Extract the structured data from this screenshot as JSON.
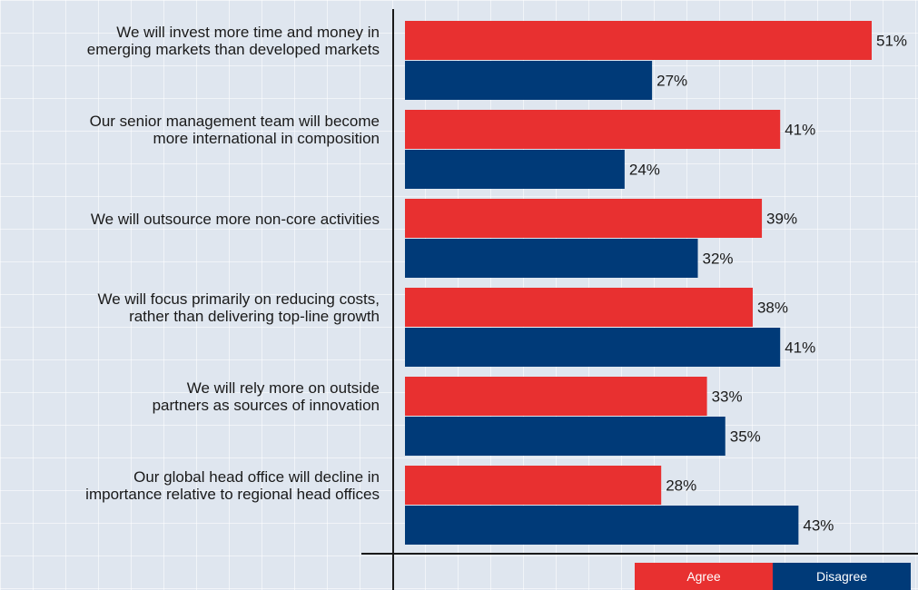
{
  "chart_data": {
    "type": "bar",
    "orientation": "horizontal",
    "categories": [
      [
        "We will invest more time and money in",
        "emerging markets than developed markets"
      ],
      [
        "Our senior management team will become",
        "more international in composition"
      ],
      [
        "We will outsource more non-core activities"
      ],
      [
        "We will focus primarily on reducing costs,",
        "rather than delivering top-line growth"
      ],
      [
        "We will rely more on outside",
        "partners as sources of innovation"
      ],
      [
        "Our global head office will decline in",
        "importance relative to regional head offices"
      ]
    ],
    "series": [
      {
        "name": "Agree",
        "color": "#e83030",
        "values": [
          51,
          41,
          39,
          38,
          33,
          28
        ]
      },
      {
        "name": "Disagree",
        "color": "#003a78",
        "values": [
          27,
          24,
          32,
          41,
          35,
          43
        ]
      }
    ],
    "value_suffix": "%",
    "xlim": [
      0,
      51
    ],
    "title": "",
    "xlabel": "",
    "ylabel": "",
    "grid": true,
    "legend_position": "bottom-right"
  }
}
